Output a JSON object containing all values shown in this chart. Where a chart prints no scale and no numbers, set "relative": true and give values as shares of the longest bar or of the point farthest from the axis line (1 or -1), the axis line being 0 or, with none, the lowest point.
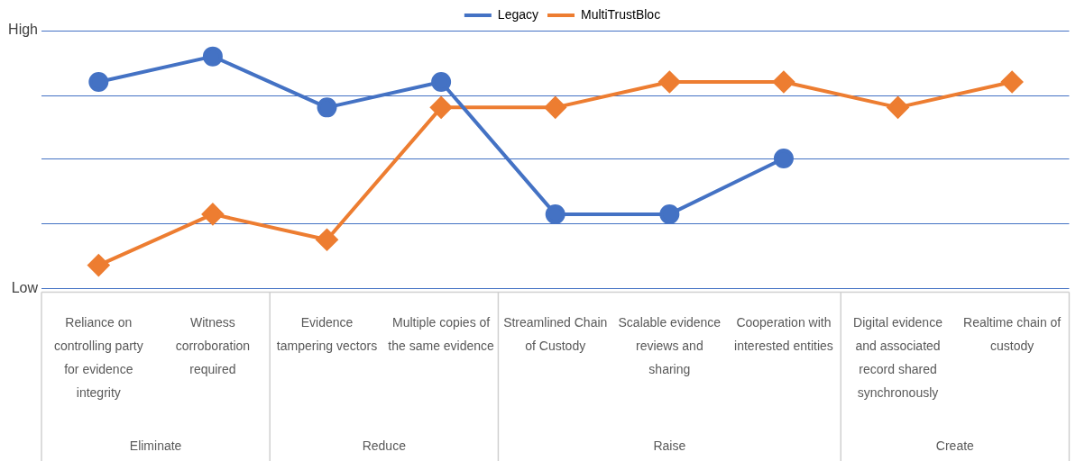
{
  "chart_data": {
    "type": "line",
    "relative": true,
    "categories": [
      "Reliance on controlling party for evidence integrity",
      "Witness corroboration required",
      "Evidence tampering vectors",
      "Multiple copies of the same evidence",
      "Streamlined Chain of Custody",
      "Scalable evidence reviews and sharing",
      "Cooperation with interested entities",
      "Digital evidence and associated record shared synchronously",
      "Realtime chain of custody"
    ],
    "series": [
      {
        "name": "Legacy",
        "color": "#4472c4",
        "marker": "circle",
        "values": [
          0.89,
          1,
          0.78,
          0.89,
          0.32,
          0.32,
          0.56,
          null,
          null
        ]
      },
      {
        "name": "MultiTrustBloc",
        "color": "#ed7d31",
        "marker": "diamond",
        "values": [
          0.1,
          0.32,
          0.21,
          0.78,
          0.78,
          0.89,
          0.89,
          0.78,
          0.89
        ]
      }
    ],
    "ref_lines": [
      {
        "axis": "y",
        "value": 0.28,
        "color": "#4472c4"
      },
      {
        "axis": "y",
        "value": 0.56,
        "color": "#4472c4"
      },
      {
        "axis": "y",
        "value": 0.83,
        "color": "#4472c4"
      }
    ],
    "legend": "top",
    "line_style": "solid",
    "annotations": [
      "High",
      "Low",
      "Eliminate",
      "Reduce",
      "Raise",
      "Create"
    ]
  }
}
